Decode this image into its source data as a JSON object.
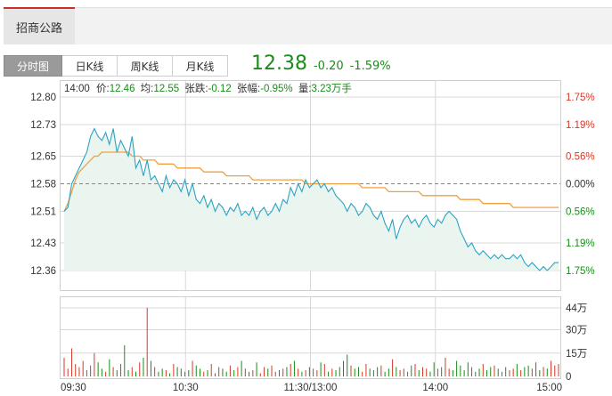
{
  "stock_tab": {
    "name": "招商公路"
  },
  "view_tabs": [
    {
      "label": "分时图",
      "active": true
    },
    {
      "label": "日K线",
      "active": false
    },
    {
      "label": "周K线",
      "active": false
    },
    {
      "label": "月K线",
      "active": false
    }
  ],
  "quote": {
    "price": "12.38",
    "change": "-0.20",
    "change_pct": "-1.59%"
  },
  "info_bar": {
    "time": "14:00",
    "price_label": "价:",
    "price": "12.46",
    "avg_label": "均:",
    "avg": "12.55",
    "change_label": "张跌:",
    "change": "-0.12",
    "pct_label": "张幅:",
    "pct": "-0.95%",
    "vol_label": "量:",
    "vol": "3.23万手"
  },
  "colors": {
    "up": "#d23a2a",
    "down": "#1a8c1a",
    "price_line": "#2aa3c4",
    "avg_line": "#f0a040",
    "area_fill": "#eaf5ef",
    "grid": "#d8d8d8"
  },
  "chart_data": {
    "type": "line",
    "y_ticks_left": [
      "12.80",
      "12.73",
      "12.65",
      "12.58",
      "12.51",
      "12.43",
      "12.36"
    ],
    "y_ticks_right": [
      "1.75%",
      "1.19%",
      "0.56%",
      "0.00%",
      "0.56%",
      "1.19%",
      "1.75%"
    ],
    "ylim": [
      12.36,
      12.8
    ],
    "prev_close": 12.58,
    "x_ticks": [
      "09:30",
      "10:30",
      "11:30/13:00",
      "14:00",
      "15:00"
    ],
    "vol_ticks": [
      "44万",
      "30万",
      "15万",
      "0"
    ],
    "vol_max": 44,
    "series": [
      {
        "values": [
          12.51,
          12.52,
          12.58,
          12.6,
          12.62,
          12.64,
          12.66,
          12.7,
          12.72,
          12.7,
          12.69,
          12.71,
          12.68,
          12.72,
          12.66,
          12.69,
          12.67,
          12.65,
          12.7,
          12.62,
          12.64,
          12.6,
          12.64,
          12.59,
          12.6,
          12.58,
          12.56,
          12.6,
          12.57,
          12.59,
          12.58,
          12.56,
          12.59,
          12.55,
          12.58,
          12.54,
          12.53,
          12.55,
          12.52,
          12.54,
          12.51,
          12.53,
          12.52,
          12.5,
          12.52,
          12.51,
          12.53,
          12.5,
          12.51,
          12.5,
          12.52,
          12.49,
          12.51,
          12.52,
          12.5,
          12.51,
          12.53,
          12.51,
          12.54,
          12.53,
          12.57,
          12.55,
          12.58,
          12.56,
          12.59,
          12.57,
          12.58,
          12.59,
          12.57,
          12.58,
          12.56,
          12.57,
          12.55,
          12.54,
          12.53,
          12.51,
          12.53,
          12.52,
          12.5,
          12.51,
          12.53,
          12.52,
          12.5,
          12.49,
          12.51,
          12.48,
          12.46,
          12.49,
          12.44,
          12.47,
          12.49,
          12.5,
          12.48,
          12.49,
          12.47,
          12.49,
          12.5,
          12.48,
          12.47,
          12.49,
          12.48,
          12.5,
          12.51,
          12.5,
          12.49,
          12.46,
          12.44,
          12.42,
          12.43,
          12.41,
          12.4,
          12.41,
          12.4,
          12.39,
          12.4,
          12.39,
          12.4,
          12.39,
          12.39,
          12.4,
          12.39,
          12.4,
          12.38,
          12.37,
          12.38,
          12.37,
          12.36,
          12.37,
          12.36,
          12.37,
          12.38,
          12.38
        ]
      },
      {
        "values": [
          12.51,
          12.53,
          12.56,
          12.59,
          12.61,
          12.62,
          12.63,
          12.64,
          12.65,
          12.65,
          12.66,
          12.66,
          12.66,
          12.66,
          12.66,
          12.66,
          12.66,
          12.66,
          12.65,
          12.65,
          12.65,
          12.64,
          12.64,
          12.64,
          12.64,
          12.63,
          12.63,
          12.63,
          12.63,
          12.63,
          12.62,
          12.62,
          12.62,
          12.62,
          12.62,
          12.62,
          12.62,
          12.61,
          12.61,
          12.61,
          12.61,
          12.61,
          12.61,
          12.6,
          12.6,
          12.6,
          12.6,
          12.6,
          12.6,
          12.6,
          12.59,
          12.59,
          12.59,
          12.59,
          12.59,
          12.59,
          12.59,
          12.59,
          12.59,
          12.59,
          12.59,
          12.59,
          12.59,
          12.59,
          12.58,
          12.58,
          12.58,
          12.58,
          12.58,
          12.58,
          12.58,
          12.58,
          12.58,
          12.58,
          12.58,
          12.58,
          12.58,
          12.58,
          12.58,
          12.57,
          12.57,
          12.57,
          12.57,
          12.57,
          12.57,
          12.57,
          12.56,
          12.56,
          12.56,
          12.56,
          12.56,
          12.56,
          12.56,
          12.56,
          12.56,
          12.55,
          12.55,
          12.55,
          12.55,
          12.55,
          12.55,
          12.55,
          12.55,
          12.55,
          12.55,
          12.54,
          12.54,
          12.54,
          12.54,
          12.54,
          12.54,
          12.53,
          12.53,
          12.53,
          12.53,
          12.53,
          12.53,
          12.53,
          12.53,
          12.52,
          12.52,
          12.52,
          12.52,
          12.52,
          12.52,
          12.52,
          12.52,
          12.52,
          12.52,
          12.52,
          12.52,
          12.52
        ]
      }
    ],
    "volume": [
      12,
      5,
      18,
      8,
      6,
      10,
      4,
      7,
      15,
      9,
      5,
      3,
      11,
      6,
      4,
      8,
      20,
      4,
      6,
      3,
      9,
      12,
      44,
      10,
      6,
      3,
      5,
      4,
      2,
      8,
      6,
      5,
      3,
      4,
      10,
      7,
      5,
      3,
      4,
      8,
      2,
      6,
      5,
      3,
      7,
      4,
      6,
      10,
      5,
      3,
      4,
      9,
      2,
      6,
      5,
      7,
      3,
      4,
      5,
      6,
      8,
      10,
      5,
      3,
      4,
      6,
      5,
      4,
      9,
      8,
      3,
      5,
      4,
      6,
      10,
      14,
      7,
      5,
      6,
      3,
      8,
      5,
      4,
      6,
      7,
      3,
      5,
      11,
      6,
      4,
      5,
      3,
      7,
      8,
      4,
      6,
      5,
      3,
      9,
      5,
      6,
      12,
      5,
      4,
      10,
      7,
      4,
      9,
      6,
      3,
      5,
      8,
      4,
      6,
      7,
      5,
      3,
      6,
      4,
      5,
      8,
      4,
      6,
      7,
      5,
      9,
      4,
      6,
      5,
      10,
      7,
      8
    ]
  }
}
